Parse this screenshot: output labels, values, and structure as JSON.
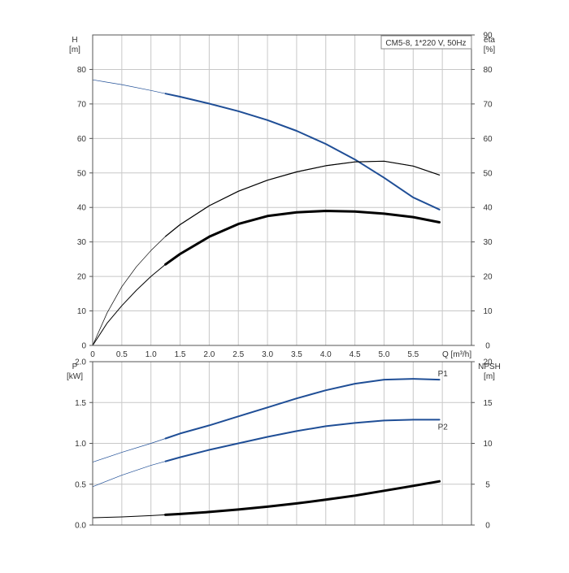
{
  "chart_data": [
    {
      "type": "line",
      "title": "CM5-8, 1*220 V, 50Hz",
      "left_axis": {
        "label": "H",
        "unit": "[m]",
        "ylim": [
          0,
          90
        ],
        "ticks": [
          0,
          10,
          20,
          30,
          40,
          50,
          60,
          70,
          80
        ]
      },
      "right_axis": {
        "label": "eta",
        "unit": "[%]",
        "ylim": [
          0,
          90
        ],
        "ticks": [
          0,
          10,
          20,
          30,
          40,
          50,
          60,
          70,
          80,
          90
        ]
      },
      "x_axis": {
        "label": "Q [m³/h]",
        "xlim": [
          0,
          6.5
        ],
        "ticks": [
          "0",
          "0.5",
          "1.0",
          "1.5",
          "2.0",
          "2.5",
          "3.0",
          "3.5",
          "4.0",
          "4.5",
          "5.0",
          "5.5"
        ]
      },
      "grid": true,
      "series": [
        {
          "axis": "left",
          "color": "#1f4e96",
          "op_start": 1.25,
          "x": [
            0,
            0.5,
            1.0,
            1.25,
            1.5,
            2.0,
            2.5,
            3.0,
            3.5,
            4.0,
            4.5,
            5.0,
            5.5,
            5.95
          ],
          "values": [
            77,
            75.6,
            73.9,
            73,
            72.1,
            70.1,
            67.9,
            65.3,
            62.2,
            58.4,
            53.9,
            48.6,
            42.9,
            39.4
          ]
        },
        {
          "axis": "right",
          "color": "#000000",
          "op_start": 1.25,
          "x": [
            0,
            0.25,
            0.5,
            0.75,
            1.0,
            1.25,
            1.5,
            2.0,
            2.5,
            3.0,
            3.5,
            4.0,
            4.5,
            5.0,
            5.5,
            5.95
          ],
          "values": [
            0,
            9.5,
            17,
            22.8,
            27.5,
            31.6,
            35,
            40.5,
            44.7,
            47.9,
            50.3,
            52.1,
            53.2,
            53.4,
            52,
            49.4
          ]
        },
        {
          "axis": "right",
          "color": "#000000",
          "op_start": 1.25,
          "bold": true,
          "x": [
            0,
            0.25,
            0.5,
            0.75,
            1.0,
            1.25,
            1.5,
            2.0,
            2.5,
            3.0,
            3.5,
            4.0,
            4.5,
            5.0,
            5.5,
            5.95
          ],
          "values": [
            0,
            6.5,
            11.5,
            16,
            20,
            23.5,
            26.5,
            31.5,
            35.2,
            37.5,
            38.6,
            39,
            38.8,
            38.2,
            37.2,
            35.7
          ]
        }
      ]
    },
    {
      "type": "line",
      "left_axis": {
        "label": "P",
        "unit": "[kW]",
        "ylim": [
          0,
          2.0
        ],
        "ticks": [
          "0.0",
          "0.5",
          "1.0",
          "1.5",
          "2.0"
        ]
      },
      "right_axis": {
        "label": "NPSH",
        "unit": "[m]",
        "ylim": [
          0,
          20
        ],
        "ticks": [
          0,
          5,
          10,
          15,
          20
        ]
      },
      "x_axis": {
        "xlim": [
          0,
          6.5
        ]
      },
      "grid": true,
      "series": [
        {
          "name": "P1",
          "axis": "left",
          "color": "#1f4e96",
          "op_start": 1.25,
          "x": [
            0,
            0.5,
            1.0,
            1.25,
            1.5,
            2.0,
            2.5,
            3.0,
            3.5,
            4.0,
            4.5,
            5.0,
            5.5,
            5.95
          ],
          "values": [
            0.77,
            0.89,
            1.0,
            1.06,
            1.12,
            1.22,
            1.33,
            1.44,
            1.55,
            1.65,
            1.73,
            1.78,
            1.79,
            1.78
          ]
        },
        {
          "name": "P2",
          "axis": "left",
          "color": "#1f4e96",
          "op_start": 1.25,
          "x": [
            0,
            0.5,
            1.0,
            1.25,
            1.5,
            2.0,
            2.5,
            3.0,
            3.5,
            4.0,
            4.5,
            5.0,
            5.5,
            5.95
          ],
          "values": [
            0.47,
            0.61,
            0.73,
            0.78,
            0.83,
            0.92,
            1.0,
            1.08,
            1.15,
            1.21,
            1.25,
            1.28,
            1.29,
            1.29
          ]
        },
        {
          "axis": "right",
          "color": "#000000",
          "op_start": 1.25,
          "bold": true,
          "x": [
            0,
            0.5,
            1.0,
            1.25,
            1.5,
            2.0,
            2.5,
            3.0,
            3.5,
            4.0,
            4.5,
            5.0,
            5.5,
            5.95
          ],
          "values": [
            0.9,
            1.0,
            1.15,
            1.25,
            1.35,
            1.6,
            1.9,
            2.25,
            2.65,
            3.1,
            3.6,
            4.2,
            4.8,
            5.35
          ]
        }
      ]
    }
  ]
}
